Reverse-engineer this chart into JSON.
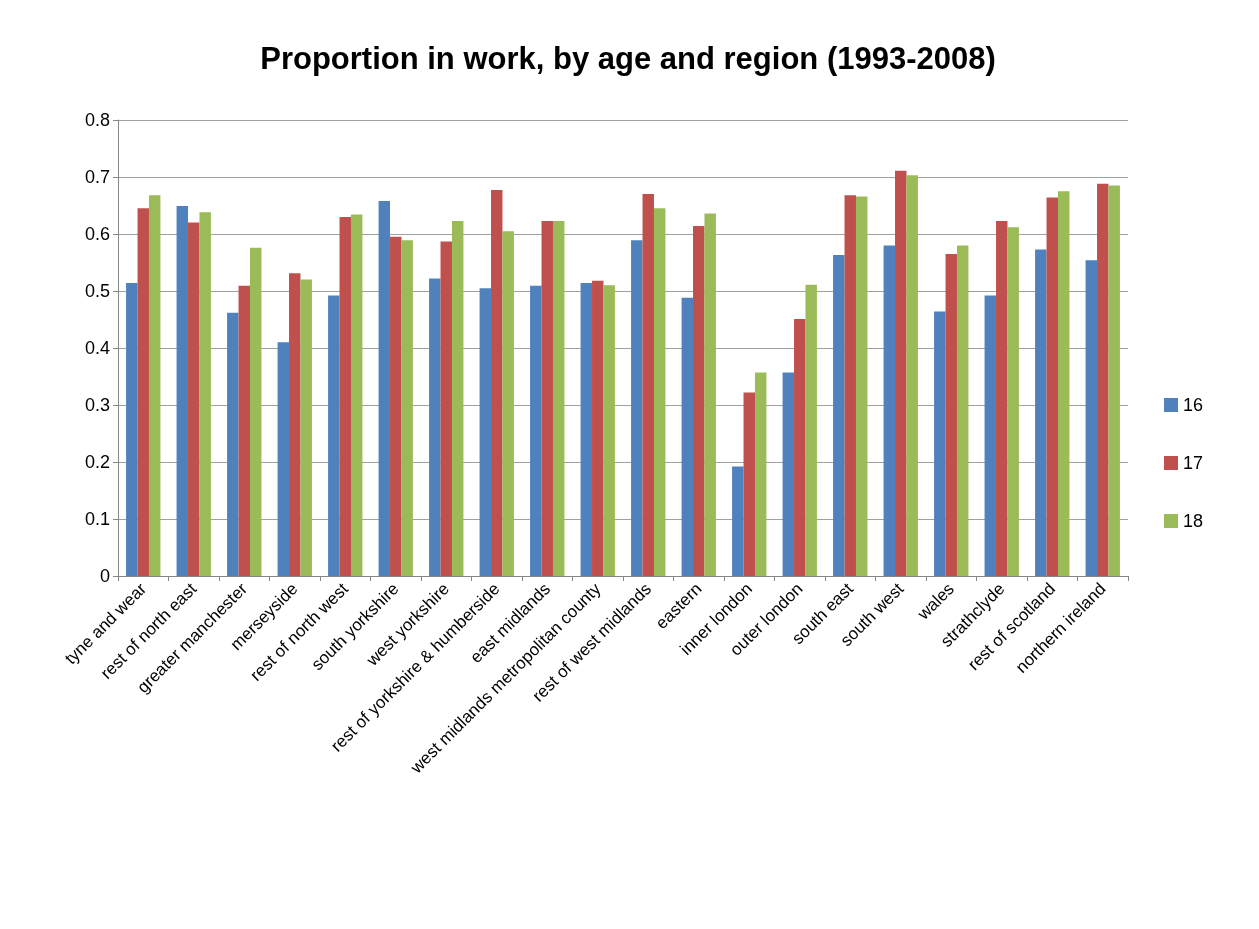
{
  "chart_data": {
    "type": "bar",
    "title": "Proportion in work, by age and region (1993-2008)",
    "categories": [
      "tyne and wear",
      "rest of north east",
      "greater manchester",
      "merseyside",
      "rest of north west",
      "south yorkshire",
      "west yorkshire",
      "rest of yorkshire & humberside",
      "east midlands",
      "west midlands metropolitan county",
      "rest of west midlands",
      "eastern",
      "inner london",
      "outer london",
      "south east",
      "south west",
      "wales",
      "strathclyde",
      "rest of scotland",
      "northern ireland"
    ],
    "series": [
      {
        "name": "16",
        "color": "#4f81bd",
        "values": [
          0.514,
          0.649,
          0.462,
          0.41,
          0.492,
          0.658,
          0.522,
          0.505,
          0.509,
          0.514,
          0.589,
          0.488,
          0.192,
          0.357,
          0.563,
          0.58,
          0.464,
          0.492,
          0.573,
          0.554
        ]
      },
      {
        "name": "17",
        "color": "#c0504d",
        "values": [
          0.645,
          0.62,
          0.509,
          0.531,
          0.63,
          0.595,
          0.587,
          0.677,
          0.623,
          0.518,
          0.67,
          0.614,
          0.322,
          0.451,
          0.668,
          0.711,
          0.565,
          0.623,
          0.664,
          0.688
        ]
      },
      {
        "name": "18",
        "color": "#9bbb59",
        "values": [
          0.668,
          0.638,
          0.576,
          0.52,
          0.634,
          0.589,
          0.623,
          0.605,
          0.623,
          0.51,
          0.645,
          0.636,
          0.357,
          0.511,
          0.666,
          0.703,
          0.58,
          0.612,
          0.675,
          0.685
        ]
      }
    ],
    "ylim": [
      0,
      0.8
    ],
    "yticks": [
      0,
      0.1,
      0.2,
      0.3,
      0.4,
      0.5,
      0.6,
      0.7,
      0.8
    ],
    "grid": "y",
    "legend": "right"
  }
}
